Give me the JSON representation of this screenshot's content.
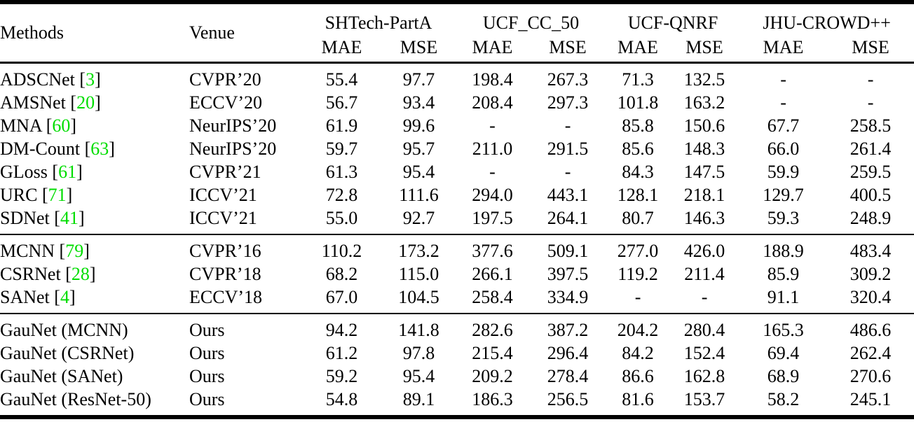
{
  "header": {
    "methods": "Methods",
    "venue": "Venue",
    "mae": "MAE",
    "mse": "MSE",
    "datasets": [
      "SHTech-PartA",
      "UCF_CC_50",
      "UCF-QNRF",
      "JHU-CROWD++"
    ]
  },
  "colors": {
    "citation": "#00dd00",
    "text": "#000000",
    "background": "#ffffff"
  },
  "groups": [
    {
      "name": "recent-methods",
      "rows": [
        {
          "method": "ADSCNet",
          "citation": "3",
          "venue": "CVPR’20",
          "values": [
            "55.4",
            "97.7",
            "198.4",
            "267.3",
            "71.3",
            "132.5",
            "-",
            "-"
          ],
          "bold": [
            4,
            5
          ]
        },
        {
          "method": "AMSNet",
          "citation": "20",
          "venue": "ECCV’20",
          "values": [
            "56.7",
            "93.4",
            "208.4",
            "297.3",
            "101.8",
            "163.2",
            "-",
            "-"
          ],
          "bold": []
        },
        {
          "method": "MNA",
          "citation": "60",
          "venue": "NeurIPS’20",
          "values": [
            "61.9",
            "99.6",
            "-",
            "-",
            "85.8",
            "150.6",
            "67.7",
            "258.5"
          ],
          "bold": []
        },
        {
          "method": "DM-Count",
          "citation": "63",
          "venue": "NeurIPS’20",
          "values": [
            "59.7",
            "95.7",
            "211.0",
            "291.5",
            "85.6",
            "148.3",
            "66.0",
            "261.4"
          ],
          "bold": []
        },
        {
          "method": "GLoss",
          "citation": "61",
          "venue": "CVPR’21",
          "values": [
            "61.3",
            "95.4",
            "-",
            "-",
            "84.3",
            "147.5",
            "59.9",
            "259.5"
          ],
          "bold": []
        },
        {
          "method": "URC",
          "citation": "71",
          "venue": "ICCV’21",
          "values": [
            "72.8",
            "111.6",
            "294.0",
            "443.1",
            "128.1",
            "218.1",
            "129.7",
            "400.5"
          ],
          "bold": []
        },
        {
          "method": "SDNet",
          "citation": "41",
          "venue": "ICCV’21",
          "values": [
            "55.0",
            "92.7",
            "197.5",
            "264.1",
            "80.7",
            "146.3",
            "59.3",
            "248.9"
          ],
          "bold": []
        }
      ]
    },
    {
      "name": "baseline-methods",
      "rows": [
        {
          "method": "MCNN",
          "citation": "79",
          "venue": "CVPR’16",
          "values": [
            "110.2",
            "173.2",
            "377.6",
            "509.1",
            "277.0",
            "426.0",
            "188.9",
            "483.4"
          ],
          "bold": []
        },
        {
          "method": "CSRNet",
          "citation": "28",
          "venue": "CVPR’18",
          "values": [
            "68.2",
            "115.0",
            "266.1",
            "397.5",
            "119.2",
            "211.4",
            "85.9",
            "309.2"
          ],
          "bold": []
        },
        {
          "method": "SANet",
          "citation": "4",
          "venue": "ECCV’18",
          "values": [
            "67.0",
            "104.5",
            "258.4",
            "334.9",
            "-",
            "-",
            "91.1",
            "320.4"
          ],
          "bold": []
        }
      ]
    },
    {
      "name": "gaunet-ours",
      "rows": [
        {
          "method": "GauNet (MCNN)",
          "citation": null,
          "venue": "Ours",
          "values": [
            "94.2",
            "141.8",
            "282.6",
            "387.2",
            "204.2",
            "280.4",
            "165.3",
            "486.6"
          ],
          "bold": []
        },
        {
          "method": "GauNet (CSRNet)",
          "citation": null,
          "venue": "Ours",
          "values": [
            "61.2",
            "97.8",
            "215.4",
            "296.4",
            "84.2",
            "152.4",
            "69.4",
            "262.4"
          ],
          "bold": []
        },
        {
          "method": "GauNet (SANet)",
          "citation": null,
          "venue": "Ours",
          "values": [
            "59.2",
            "95.4",
            "209.2",
            "278.4",
            "86.6",
            "162.8",
            "68.9",
            "270.6"
          ],
          "bold": []
        },
        {
          "method": "GauNet (ResNet-50)",
          "citation": null,
          "venue": "Ours",
          "values": [
            "54.8",
            "89.1",
            "186.3",
            "256.5",
            "81.6",
            "153.7",
            "58.2",
            "245.1"
          ],
          "bold": [
            0,
            1,
            2,
            3,
            6,
            7
          ]
        }
      ]
    }
  ]
}
